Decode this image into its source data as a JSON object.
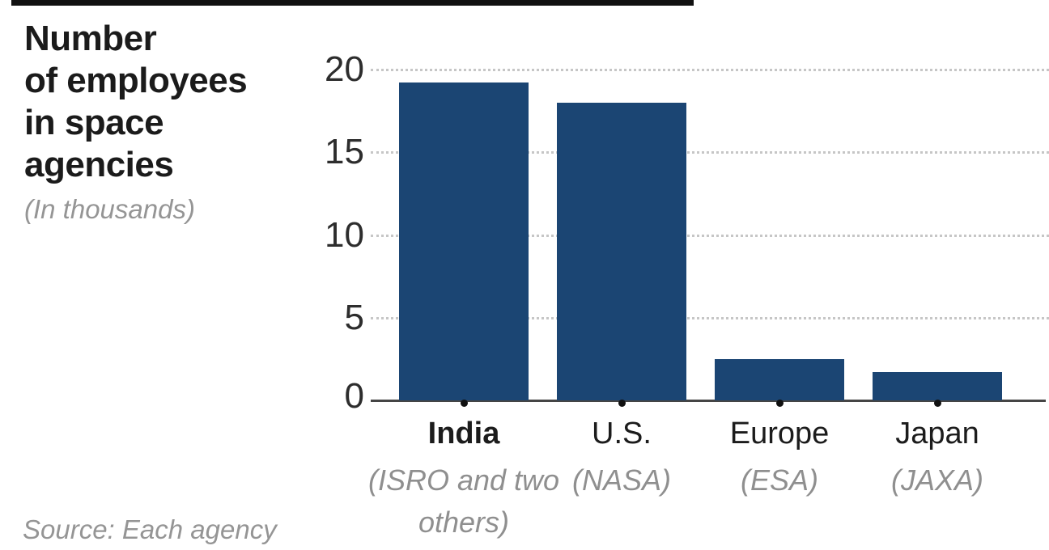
{
  "header": {
    "title_lines": [
      "Number",
      "of employees",
      "in space",
      "agencies"
    ],
    "subtitle": "(In thousands)"
  },
  "footer": {
    "source": "Source: Each agency"
  },
  "chart_data": {
    "type": "bar",
    "title": "Number of employees in space agencies",
    "subtitle": "(In thousands)",
    "units": "thousands",
    "categories": [
      "India",
      "U.S.",
      "Europe",
      "Japan"
    ],
    "category_notes": [
      "(ISRO and two others)",
      "(NASA)",
      "(ESA)",
      "(JAXA)"
    ],
    "values": [
      19.2,
      18,
      2.5,
      1.7
    ],
    "emphasized_category": "India",
    "ylim": [
      0,
      20
    ],
    "yticks": [
      20,
      15,
      10,
      5,
      0
    ],
    "xlabel": "",
    "ylabel": "",
    "grid": "horizontal-dotted",
    "legend": "none",
    "source": "Source: Each agency"
  },
  "colors": {
    "bar": "#1b4573",
    "axis": "#454545",
    "grid_dots": "#c6c6c6",
    "title_text": "#1b1b1b",
    "muted_text": "#959595",
    "tick_text": "#2d2d2d"
  }
}
